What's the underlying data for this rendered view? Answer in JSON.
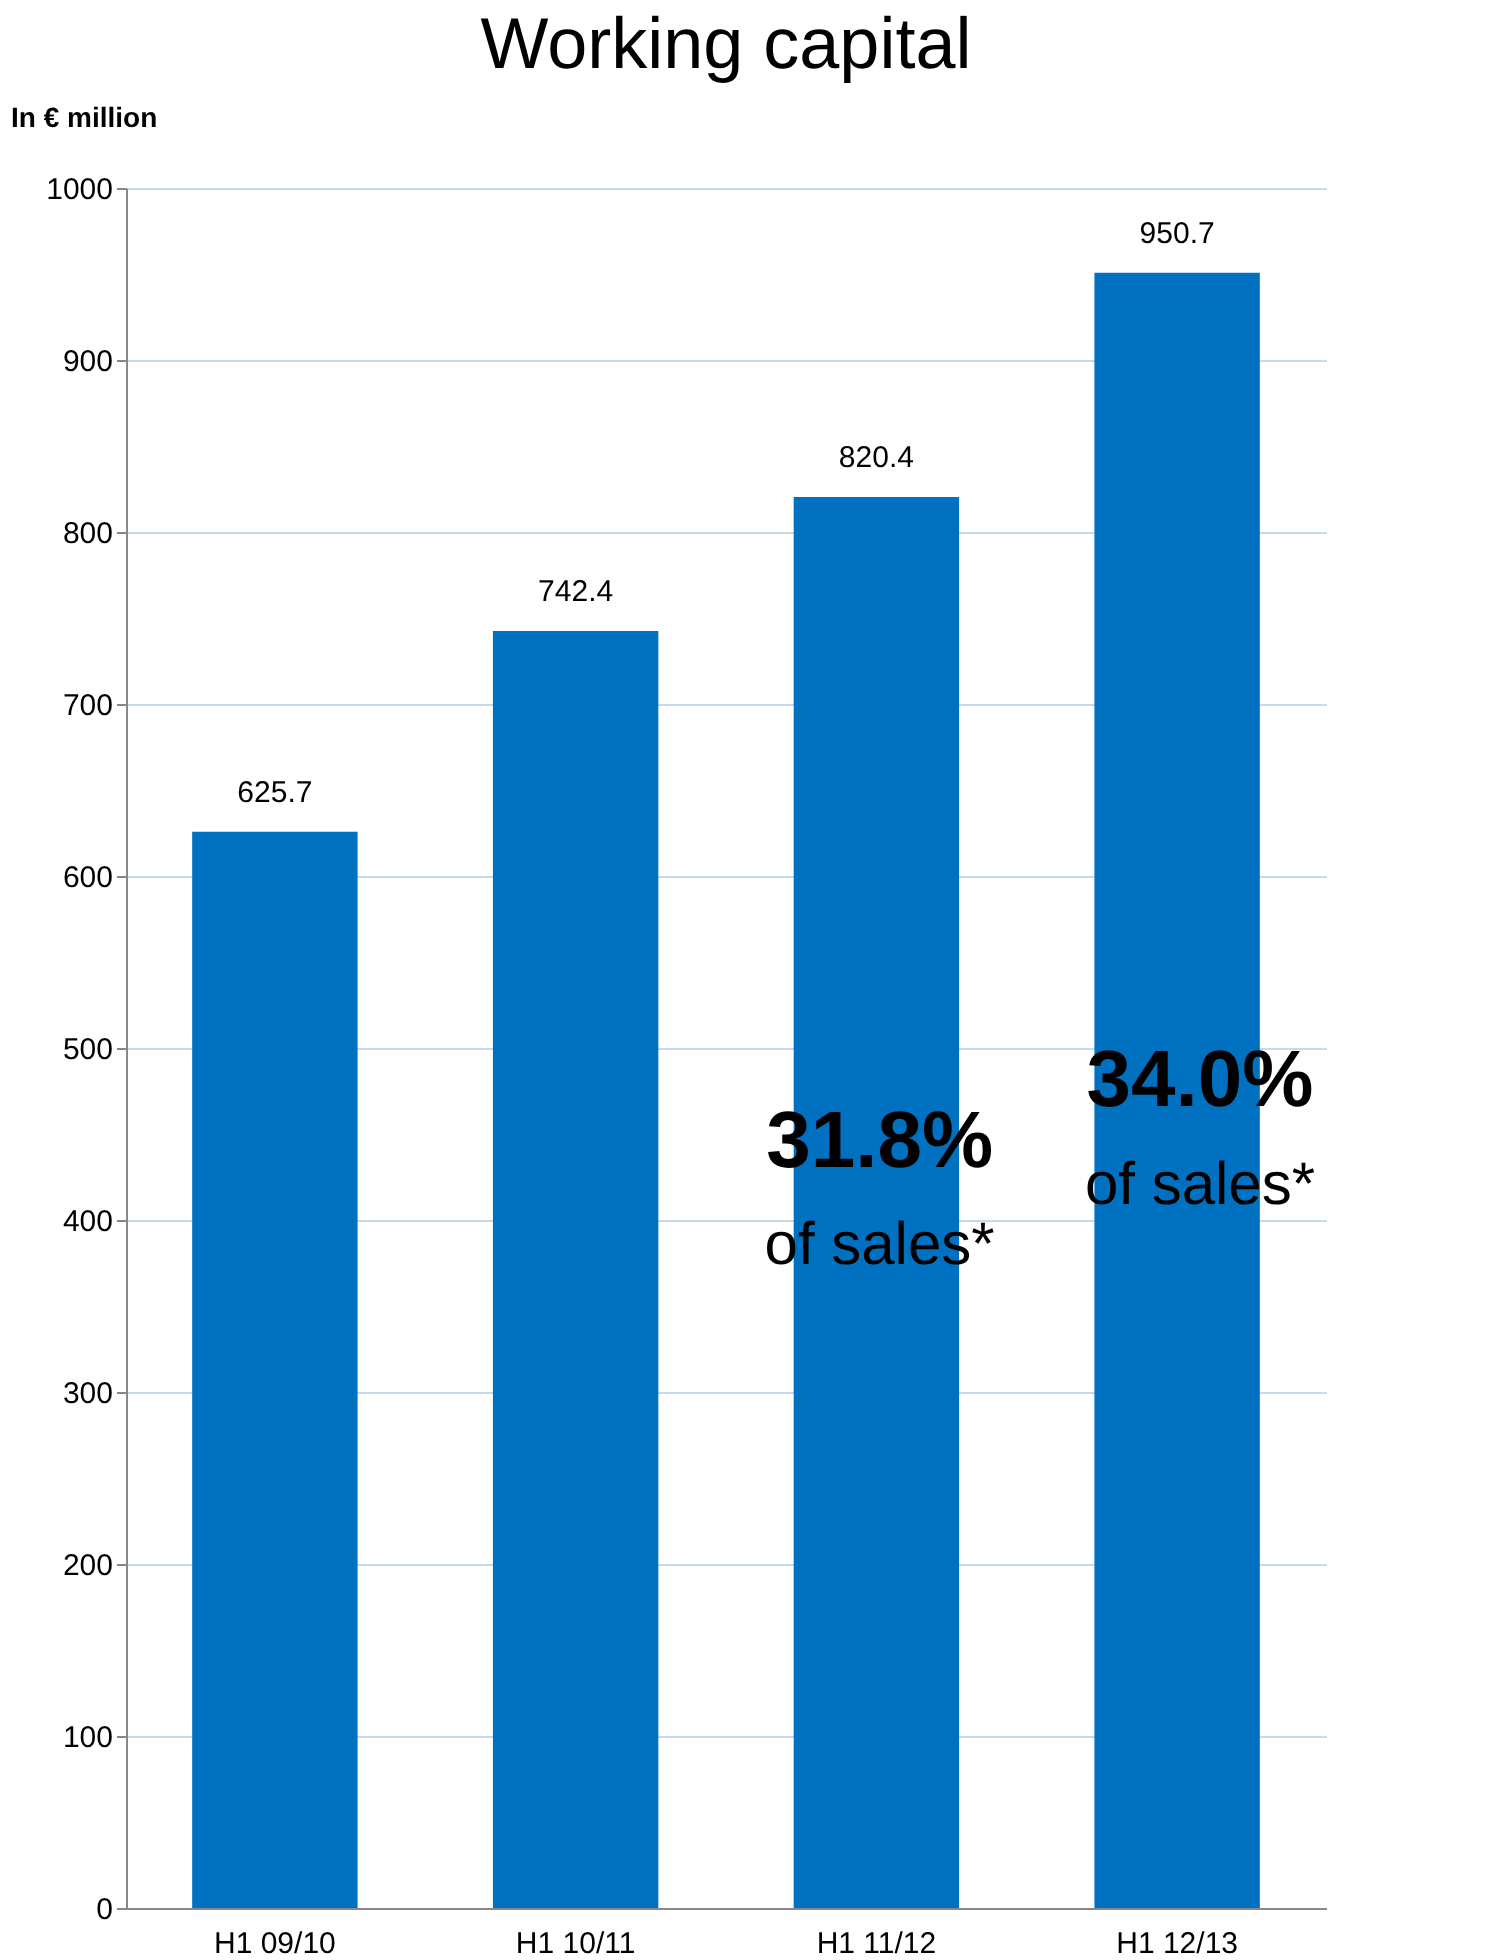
{
  "chart_data": {
    "type": "bar",
    "title": "Working capital",
    "ylabel": "In € million",
    "categories": [
      "H1 09/10",
      "H1 10/11",
      "H1 11/12",
      "H1 12/13"
    ],
    "values": [
      625.7,
      742.4,
      820.4,
      950.7
    ],
    "color": "#0070c0",
    "ylim": [
      0,
      1000
    ],
    "yticks": [
      0,
      100,
      200,
      300,
      400,
      500,
      600,
      700,
      800,
      900,
      {
        "value": 1000,
        "label": "1000"
      }
    ],
    "grid": "y",
    "data_labels": true,
    "annotations": [
      "31.8%",
      "of sales*",
      "34.0%",
      "of sales*"
    ]
  }
}
